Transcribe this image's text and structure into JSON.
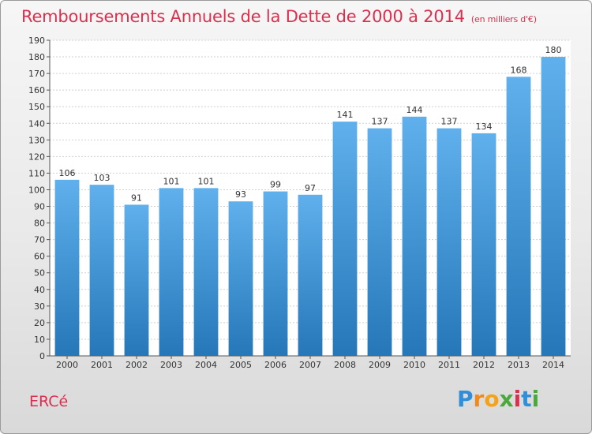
{
  "title": "Remboursements Annuels de la Dette de 2000 à 2014",
  "subtitle": "(en milliers d'€)",
  "commune": "ERCé",
  "logo": {
    "letters": [
      "P",
      "r",
      "o",
      "x",
      "i",
      "t",
      "i"
    ],
    "colors": [
      "#2f8fd8",
      "#f08a1c",
      "#f5a21b",
      "#4aa83c",
      "#d9304f",
      "#2f8fd8",
      "#4aa83c"
    ]
  },
  "colors": {
    "bar_top": "#5fb0ec",
    "bar_bottom": "#2577b8",
    "title": "#d9304f"
  },
  "chart_data": {
    "type": "bar",
    "categories": [
      "2000",
      "2001",
      "2002",
      "2003",
      "2004",
      "2005",
      "2006",
      "2007",
      "2008",
      "2009",
      "2010",
      "2011",
      "2012",
      "2013",
      "2014"
    ],
    "values": [
      106,
      103,
      91,
      101,
      101,
      93,
      99,
      97,
      141,
      137,
      144,
      137,
      134,
      168,
      180
    ],
    "ylim": [
      0,
      190
    ],
    "yticks": [
      0,
      10,
      20,
      30,
      40,
      50,
      60,
      70,
      80,
      90,
      100,
      110,
      120,
      130,
      140,
      150,
      160,
      170,
      180,
      190
    ],
    "grid": true,
    "xlabel": "",
    "ylabel": ""
  }
}
